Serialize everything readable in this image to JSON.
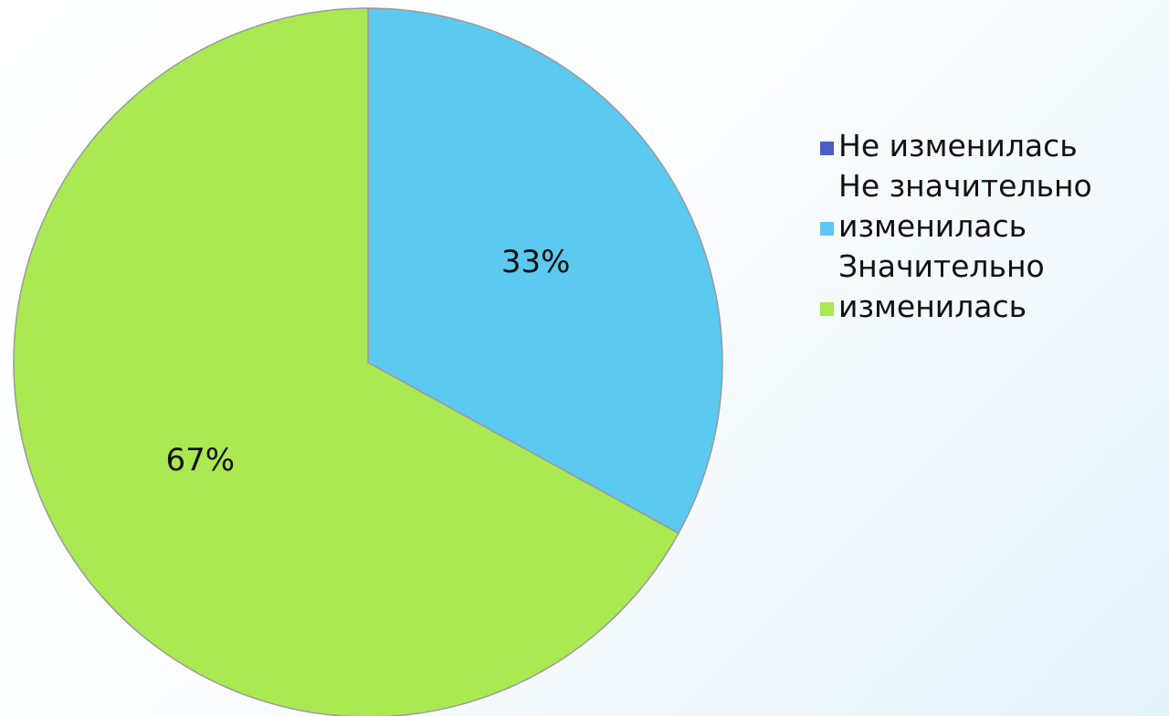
{
  "chart_data": {
    "type": "pie",
    "slices": [
      {
        "label": "Не изменилась",
        "value": 0,
        "percent_label": "",
        "color": "#4a5ec3"
      },
      {
        "label": "Не значительно изменилась",
        "value": 33,
        "percent_label": "33%",
        "color": "#5bc9f0"
      },
      {
        "label": "Значительно изменилась",
        "value": 67,
        "percent_label": "67%",
        "color": "#aae951"
      }
    ],
    "legend": {
      "placement": "right",
      "items": [
        {
          "label": "Не изменилась",
          "lines": [
            "Не изменилась"
          ],
          "color": "#4a5ec3"
        },
        {
          "label": "Не значительно изменилась",
          "lines": [
            "Не значительно",
            "изменилась"
          ],
          "color": "#5bc9f0"
        },
        {
          "label": "Значительно изменилась",
          "lines": [
            "Значительно",
            "изменилась"
          ],
          "color": "#aae951"
        }
      ]
    },
    "start_angle_deg": 0,
    "direction": "clockwise"
  }
}
